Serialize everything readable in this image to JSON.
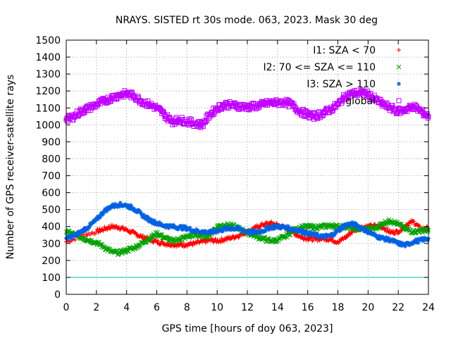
{
  "chart_data": {
    "type": "scatter",
    "title": "NRAYS. SISTED rt 30s mode. 063, 2023. Mask 30 deg",
    "xlabel": "GPS time [hours of doy 063, 2023]",
    "ylabel": "Number of GPS receiver-satellite rays",
    "xlim": [
      0,
      24
    ],
    "ylim": [
      0,
      1500
    ],
    "xticks": [
      "0",
      "2",
      "4",
      "6",
      "8",
      "10",
      "12",
      "14",
      "16",
      "18",
      "20",
      "22",
      "24"
    ],
    "yticks": [
      "0",
      "100",
      "200",
      "300",
      "400",
      "500",
      "600",
      "700",
      "800",
      "900",
      "1000",
      "1100",
      "1200",
      "1300",
      "1400",
      "1500"
    ],
    "grid": true,
    "legend_position": "top-right",
    "threshold_line": {
      "y": 100,
      "color": "#00c0c0"
    },
    "series": [
      {
        "name": "I1: SZA < 70",
        "marker": "plus",
        "color": "#ff0000",
        "x": [
          0,
          1,
          2,
          2.5,
          3,
          3.5,
          4,
          4.5,
          5,
          5.5,
          6,
          6.5,
          7,
          7.5,
          8,
          8.5,
          9,
          9.5,
          10,
          10.5,
          11,
          11.5,
          12,
          12.5,
          13,
          13.5,
          14,
          14.5,
          15,
          15.5,
          16,
          16.5,
          17,
          17.5,
          18,
          18.5,
          19,
          19.5,
          20,
          20.5,
          21,
          21.5,
          22,
          22.5,
          23,
          23.5,
          24
        ],
        "y": [
          310,
          345,
          370,
          385,
          400,
          395,
          380,
          360,
          340,
          325,
          310,
          300,
          295,
          290,
          295,
          300,
          310,
          320,
          315,
          325,
          335,
          350,
          370,
          390,
          410,
          420,
          410,
          390,
          365,
          340,
          330,
          325,
          330,
          325,
          310,
          335,
          375,
          395,
          400,
          405,
          395,
          365,
          370,
          410,
          430,
          385,
          390
        ]
      },
      {
        "name": "I2: 70 <= SZA <= 110",
        "marker": "cross",
        "color": "#00a000",
        "x": [
          0,
          0.5,
          1,
          1.5,
          2,
          2.5,
          3,
          3.5,
          4,
          4.5,
          5,
          5.5,
          6,
          6.5,
          7,
          7.5,
          8,
          8.5,
          9,
          9.5,
          10,
          10.5,
          11,
          11.5,
          12,
          12.5,
          13,
          13.5,
          14,
          14.5,
          15,
          15.5,
          16,
          16.5,
          17,
          17.5,
          18,
          18.5,
          19,
          19.5,
          20,
          20.5,
          21,
          21.5,
          22,
          22.5,
          23,
          23.5,
          24
        ],
        "y": [
          370,
          355,
          335,
          320,
          305,
          280,
          250,
          245,
          260,
          275,
          300,
          330,
          360,
          335,
          315,
          325,
          340,
          350,
          345,
          350,
          400,
          410,
          405,
          385,
          365,
          345,
          330,
          315,
          320,
          340,
          375,
          395,
          400,
          395,
          400,
          405,
          400,
          400,
          390,
          385,
          385,
          390,
          420,
          435,
          415,
          385,
          370,
          375,
          380
        ]
      },
      {
        "name": "I3: SZA > 110",
        "marker": "star",
        "color": "#0060e0",
        "x": [
          0,
          0.5,
          1,
          1.5,
          2,
          2.5,
          3,
          3.5,
          4,
          4.5,
          5,
          5.5,
          6,
          6.5,
          7,
          7.5,
          8,
          8.5,
          9,
          9.5,
          10,
          10.5,
          11,
          11.5,
          12,
          12.5,
          13,
          13.5,
          14,
          14.5,
          15,
          15.5,
          16,
          16.5,
          17,
          17.5,
          18,
          18.5,
          19,
          19.5,
          20,
          20.5,
          21,
          21.5,
          22,
          22.5,
          23,
          23.5,
          24
        ],
        "y": [
          330,
          345,
          370,
          400,
          440,
          490,
          520,
          530,
          525,
          505,
          470,
          440,
          420,
          405,
          400,
          395,
          390,
          375,
          370,
          365,
          375,
          385,
          390,
          385,
          370,
          365,
          375,
          395,
          400,
          395,
          385,
          375,
          360,
          350,
          340,
          345,
          375,
          410,
          415,
          395,
          370,
          345,
          330,
          320,
          300,
          290,
          310,
          320,
          330
        ]
      },
      {
        "name": "global",
        "marker": "square",
        "color": "#c000ff",
        "x": [
          0,
          0.5,
          1,
          1.5,
          2,
          2.5,
          3,
          3.5,
          4,
          4.5,
          5,
          5.5,
          6,
          6.5,
          7,
          7.5,
          8,
          8.5,
          9,
          9.5,
          10,
          10.5,
          11,
          11.5,
          12,
          12.5,
          13,
          13.5,
          14,
          14.5,
          15,
          15.5,
          16,
          16.5,
          17,
          17.5,
          18,
          18.5,
          19,
          19.5,
          20,
          20.5,
          21,
          21.5,
          22,
          22.5,
          23,
          23.5,
          24
        ],
        "y": [
          1030,
          1050,
          1080,
          1100,
          1120,
          1140,
          1160,
          1175,
          1185,
          1170,
          1140,
          1120,
          1100,
          1060,
          1020,
          1030,
          1020,
          1010,
          1000,
          1060,
          1100,
          1120,
          1115,
          1110,
          1105,
          1110,
          1120,
          1130,
          1130,
          1135,
          1115,
          1080,
          1060,
          1050,
          1070,
          1090,
          1120,
          1170,
          1185,
          1190,
          1180,
          1150,
          1120,
          1100,
          1080,
          1090,
          1110,
          1080,
          1050
        ]
      }
    ]
  }
}
